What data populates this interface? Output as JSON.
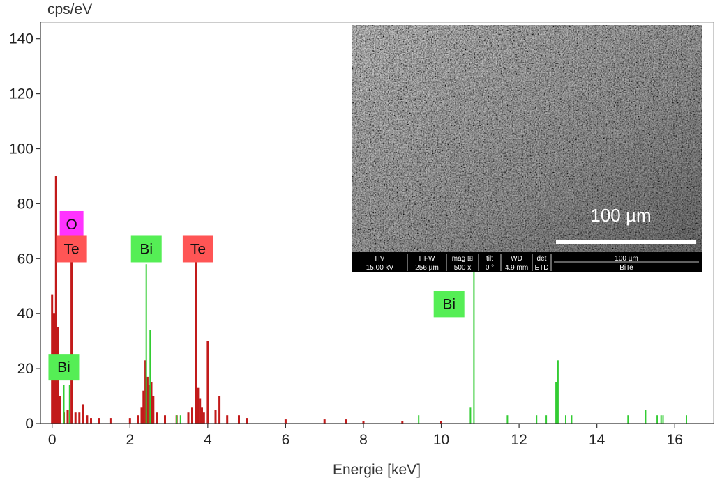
{
  "chart_data": {
    "type": "bar",
    "ylabel": "cps/eV",
    "xlabel": "Energie [keV]",
    "xlim": [
      -0.3,
      17.0
    ],
    "ylim": [
      0,
      146
    ],
    "xticks": [
      0,
      2,
      4,
      6,
      8,
      10,
      12,
      14,
      16
    ],
    "yticks": [
      0,
      20,
      40,
      60,
      80,
      100,
      120,
      140
    ],
    "tick_labels_x": [
      "0",
      "2",
      "4",
      "6",
      "8",
      "10",
      "12",
      "14",
      "16"
    ],
    "tick_labels_y": [
      "0",
      "20",
      "40",
      "60",
      "80",
      "100",
      "120",
      "140"
    ],
    "grid": false,
    "series": [
      {
        "color": "#c21a1a",
        "x": [
          0.0,
          0.05,
          0.1,
          0.15,
          0.2,
          0.3,
          0.4,
          0.5,
          0.6,
          0.7,
          0.8,
          0.9,
          1.0,
          1.2,
          1.5,
          2.0,
          2.2,
          2.3,
          2.35,
          2.4,
          2.45,
          2.5,
          2.55,
          2.6,
          2.7,
          2.9,
          3.2,
          3.5,
          3.6,
          3.7,
          3.75,
          3.8,
          3.85,
          3.9,
          4.0,
          4.2,
          4.3,
          4.5,
          4.8,
          5.0,
          6.0,
          7.0,
          7.55,
          8.0,
          9.0,
          10.0
        ],
        "values": [
          47,
          40,
          90,
          35,
          10,
          4,
          5,
          59,
          4,
          4,
          7,
          3,
          2,
          2,
          2,
          2,
          3,
          6,
          12,
          23,
          17,
          14,
          15,
          10,
          4,
          3,
          3,
          4,
          6,
          59,
          13,
          9,
          6,
          4,
          30,
          5,
          10,
          3,
          3,
          2,
          1.5,
          1.5,
          1.5,
          0.8,
          0.8,
          0.8
        ]
      },
      {
        "color": "#33cc33",
        "x": [
          0.3,
          0.45,
          2.42,
          2.52,
          3.2,
          3.3,
          9.42,
          10.75,
          10.84,
          11.7,
          12.45,
          12.7,
          12.95,
          13.0,
          13.2,
          13.35,
          14.8,
          15.25,
          15.55,
          15.65,
          15.7,
          16.3
        ],
        "values": [
          14,
          14,
          58,
          34,
          3,
          3,
          3,
          6,
          55,
          3,
          3,
          3,
          15,
          23,
          3,
          3,
          3,
          5,
          3,
          3,
          3,
          3
        ]
      }
    ],
    "annotations": [
      {
        "text": "O",
        "x": 0.5,
        "y": 72.5,
        "color": "#ff33ff"
      },
      {
        "text": "Te",
        "x": 0.5,
        "y": 63.5,
        "color": "#ff5555"
      },
      {
        "text": "Bi",
        "x": 2.42,
        "y": 63.5,
        "color": "#55ee55"
      },
      {
        "text": "Te",
        "x": 3.75,
        "y": 63.5,
        "color": "#ff5555"
      },
      {
        "text": "Bi",
        "x": 10.2,
        "y": 43.5,
        "color": "#55ee55"
      },
      {
        "text": "Bi",
        "x": 0.3,
        "y": 20.5,
        "color": "#55ee55"
      }
    ]
  },
  "inset": {
    "scale_bar_label": "100 µm",
    "info_headers": [
      "HV",
      "HFW",
      "mag ⊞",
      "tilt",
      "WD",
      "det",
      "100 µm"
    ],
    "info_values": [
      "15.00 kV",
      "256 µm",
      "500 x",
      "0 °",
      "4.9 mm",
      "ETD",
      "BiTe"
    ]
  }
}
